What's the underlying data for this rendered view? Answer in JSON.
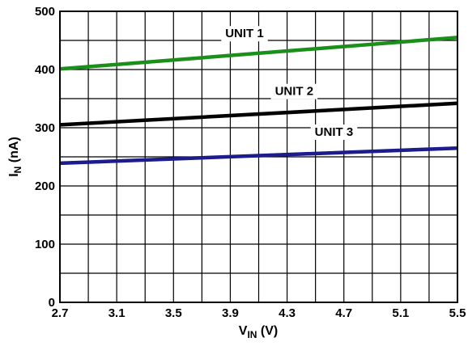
{
  "chart_data": {
    "type": "line",
    "xlabel": {
      "main": "V",
      "sub": "IN",
      "unit": " (V)"
    },
    "ylabel": {
      "main": "I",
      "sub": "N",
      "unit": " (nA)"
    },
    "xlim": [
      2.7,
      5.5
    ],
    "ylim": [
      0,
      500
    ],
    "x_ticks": [
      "2.7",
      "3.1",
      "3.5",
      "3.9",
      "4.3",
      "4.7",
      "5.1",
      "5.5"
    ],
    "y_ticks": [
      "0",
      "100",
      "200",
      "300",
      "400",
      "500"
    ],
    "grid": true,
    "series": [
      {
        "name": "UNIT 1",
        "color": "#1a8f1a",
        "x": [
          2.7,
          5.5
        ],
        "y": [
          401,
          455
        ]
      },
      {
        "name": "UNIT 2",
        "color": "#000000",
        "x": [
          2.7,
          5.5
        ],
        "y": [
          305,
          342
        ]
      },
      {
        "name": "UNIT 3",
        "color": "#1c1c8c",
        "x": [
          2.7,
          5.5
        ],
        "y": [
          239,
          265
        ]
      }
    ]
  }
}
